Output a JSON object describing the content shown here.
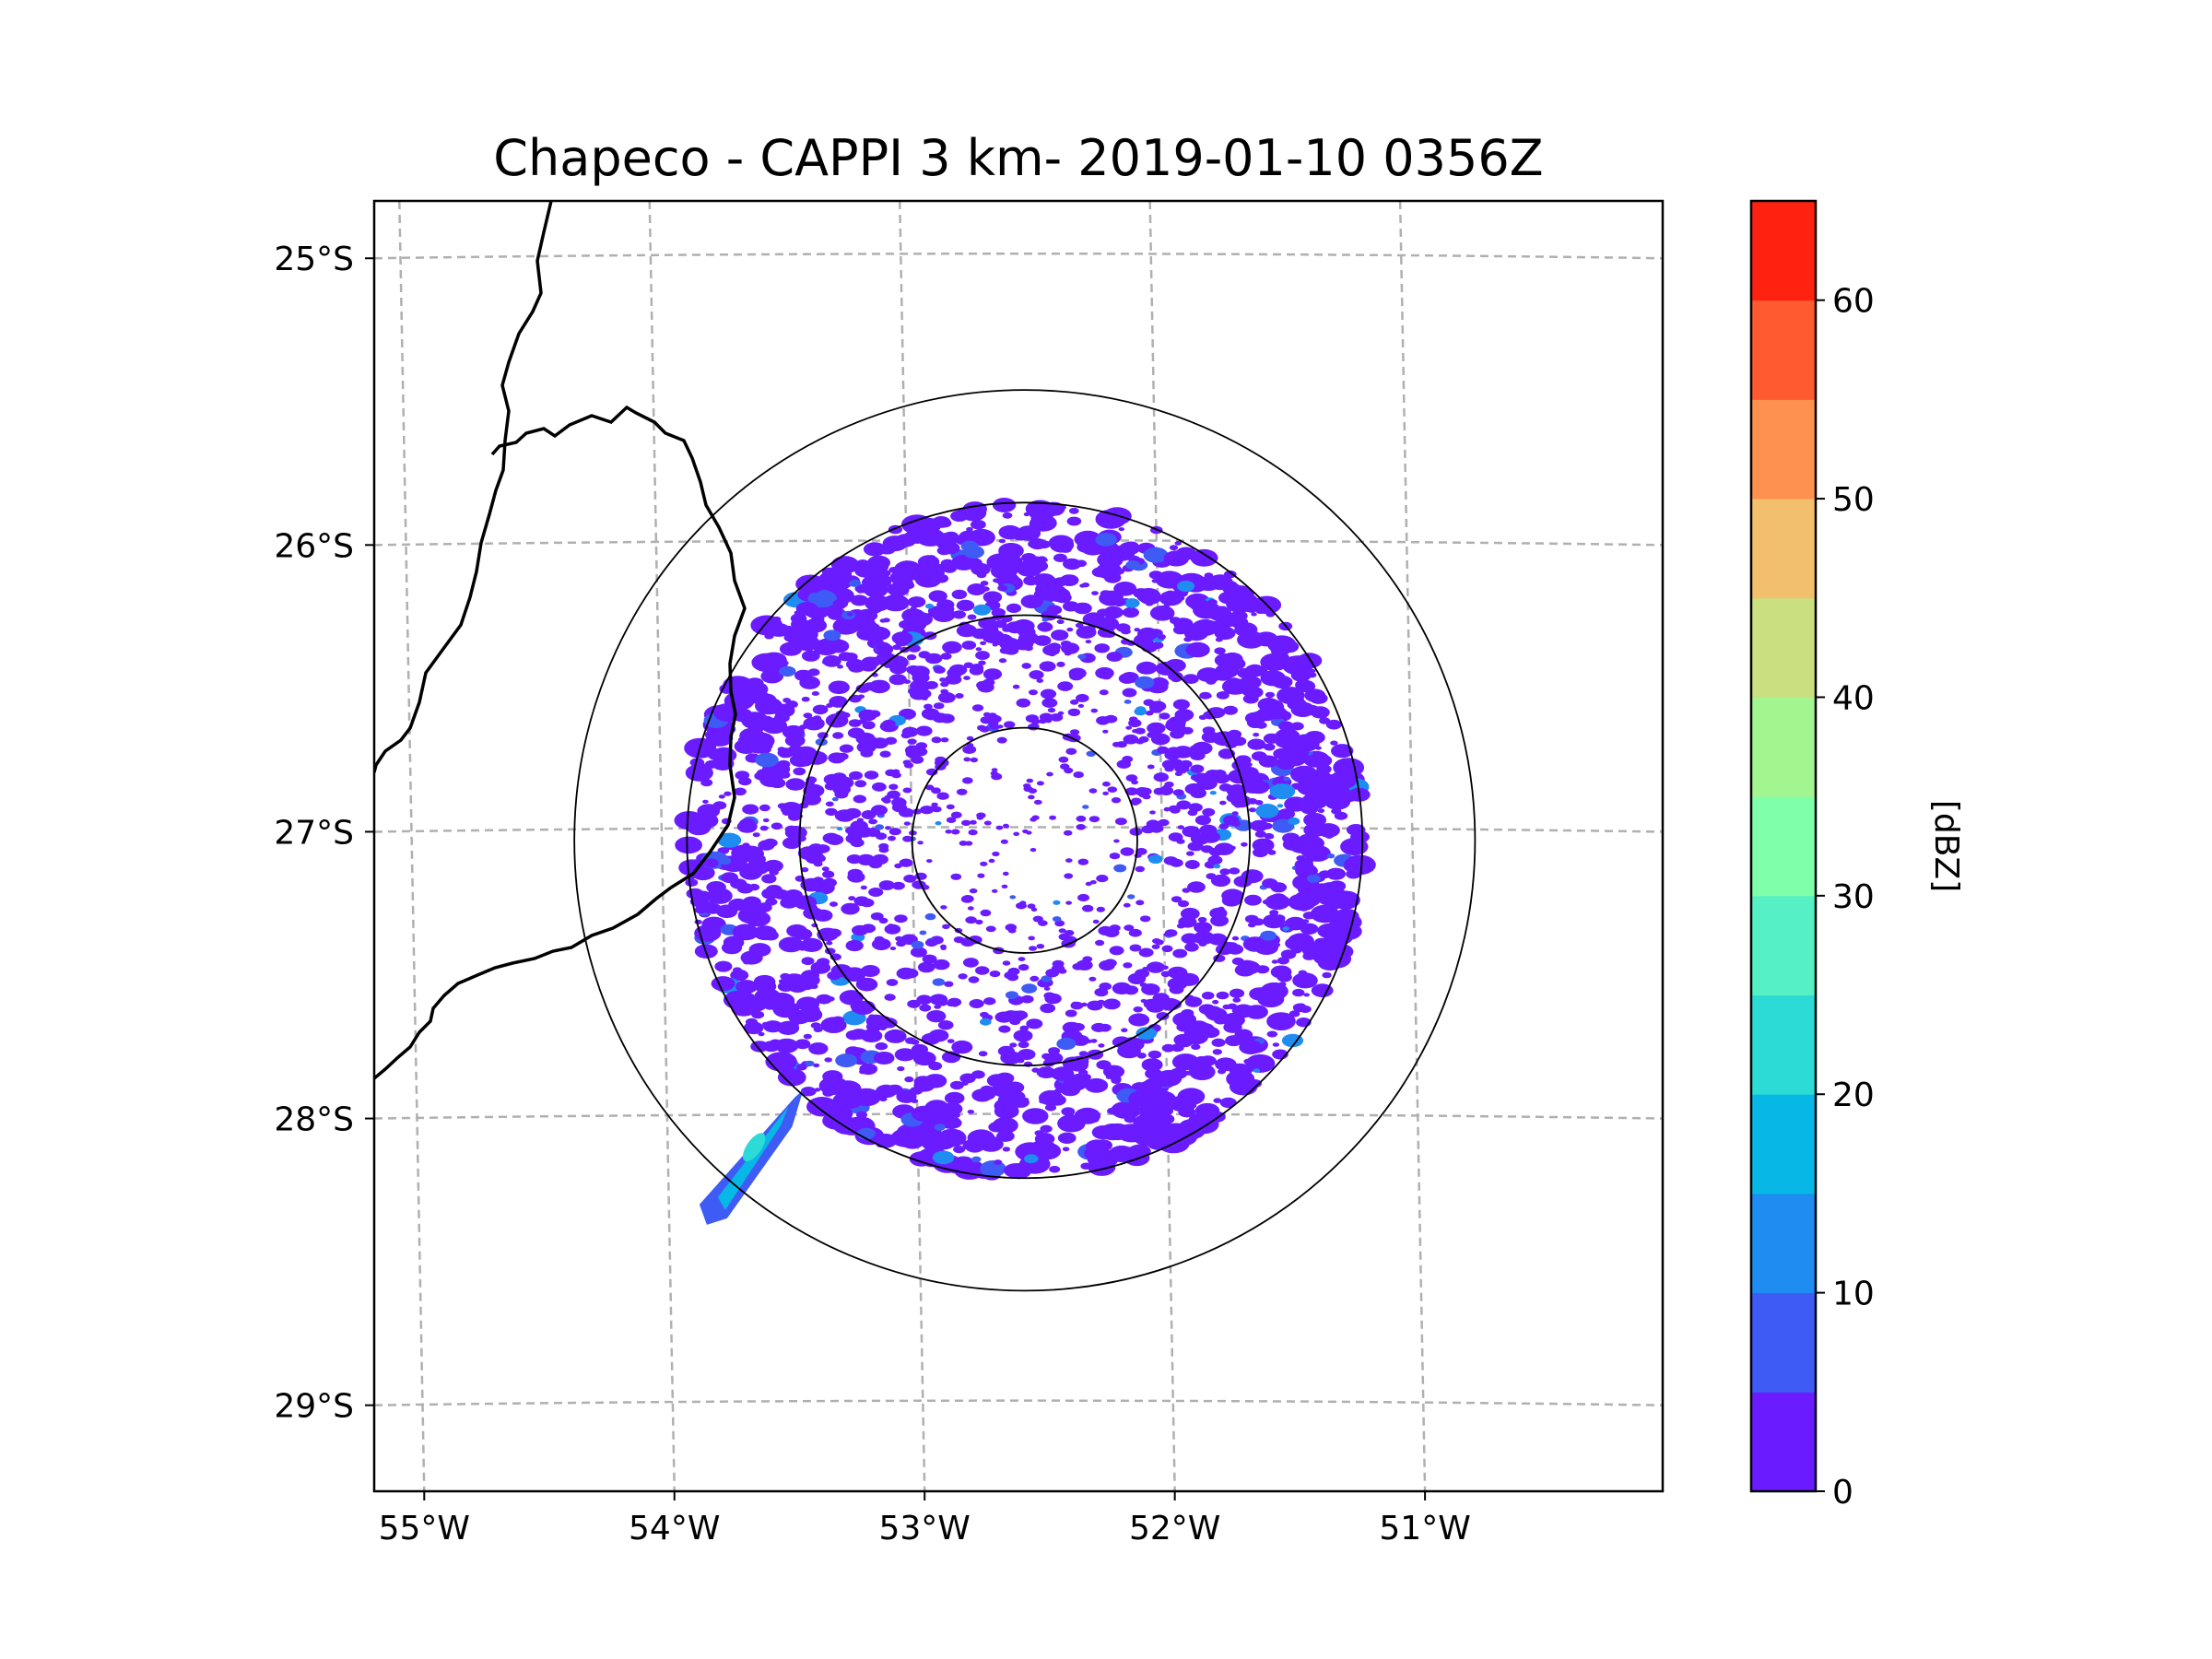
{
  "chart_data": {
    "type": "heatmap",
    "title": "Chapeco - CAPPI 3 km- 2019-01-10 0356Z",
    "map_extent": {
      "lon": [
        -55.2,
        -50.05
      ],
      "lat": [
        -29.3,
        -24.8
      ]
    },
    "lon_ticks": [
      -55,
      -54,
      -53,
      -52,
      -51
    ],
    "lon_tick_labels": [
      "55°W",
      "54°W",
      "53°W",
      "52°W",
      "51°W"
    ],
    "lat_ticks": [
      -25,
      -26,
      -27,
      -28,
      -29
    ],
    "lat_tick_labels": [
      "25°S",
      "26°S",
      "27°S",
      "28°S",
      "29°S"
    ],
    "radar_center": {
      "lon": -52.6,
      "lat": -27.03
    },
    "range_rings_deg": [
      0.45,
      0.9,
      1.35,
      1.8
    ],
    "colorbar": {
      "label": "[dBZ]",
      "min": 0,
      "max": 65,
      "step": 5,
      "ticks": [
        0,
        10,
        20,
        30,
        40,
        50,
        60
      ],
      "tick_labels": [
        "0",
        "10",
        "20",
        "30",
        "40",
        "50",
        "60"
      ],
      "colors": [
        "#6a1bff",
        "#3f5bf5",
        "#1e8cf0",
        "#07b8e6",
        "#2ddbd6",
        "#55f0c4",
        "#80ffab",
        "#a3f58f",
        "#c9df80",
        "#f2c06c",
        "#ff9150",
        "#ff5a30",
        "#ff2210"
      ]
    },
    "echo_summary": {
      "dominant_range_dbz": [
        0,
        5
      ],
      "strong_cell": {
        "lon_range": [
          -53.9,
          -53.5
        ],
        "lat_range": [
          -28.3,
          -27.9
        ],
        "max_dbz": 20
      }
    }
  }
}
